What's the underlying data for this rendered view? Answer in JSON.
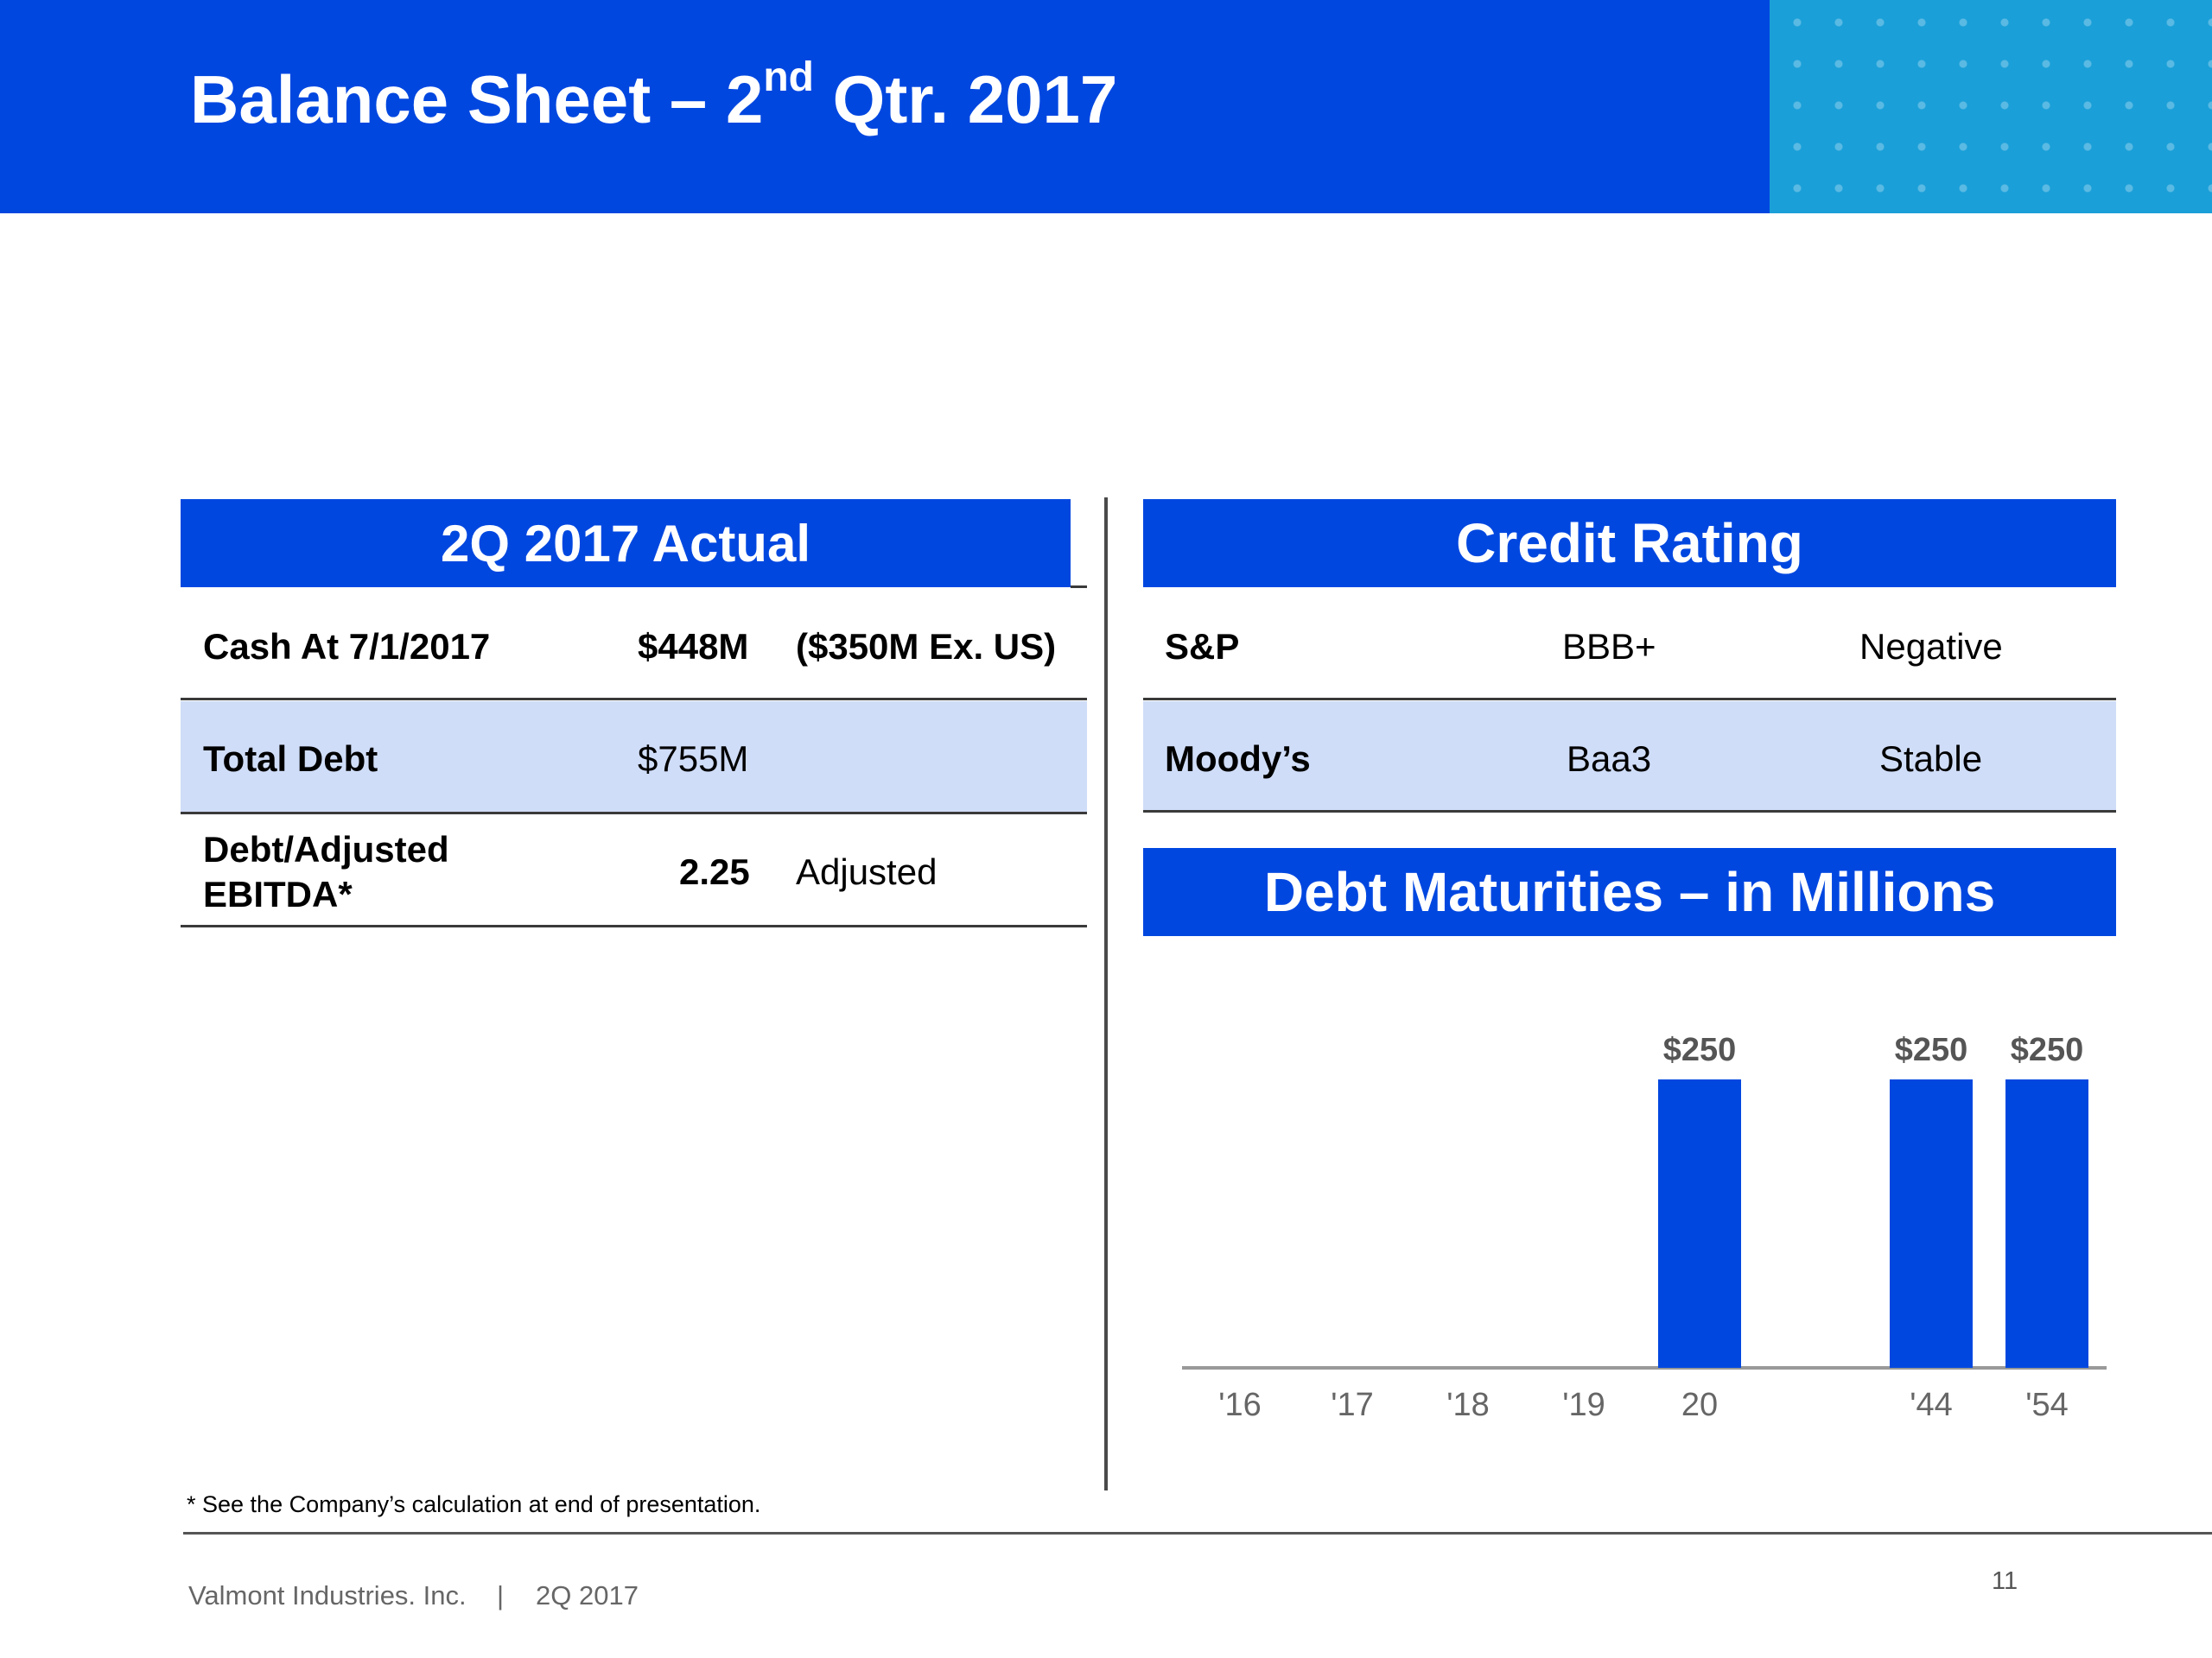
{
  "header": {
    "title_main": "Balance Sheet – 2",
    "title_sup": "nd",
    "title_end": " Qtr. 2017"
  },
  "left_panel": {
    "title": "2Q 2017 Actual",
    "rows": [
      {
        "label": "Cash At 7/1/2017",
        "value": "$448M",
        "note": "($350M Ex. US)"
      },
      {
        "label": "Total Debt",
        "value": "$755M",
        "note": ""
      },
      {
        "label_line1": "Debt/Adjusted",
        "label_line2": "EBITDA*",
        "value": "2.25",
        "note": "Adjusted"
      }
    ]
  },
  "credit_rating": {
    "title": "Credit Rating",
    "rows": [
      {
        "agency": "S&P",
        "rating": "BBB+",
        "outlook": "Negative"
      },
      {
        "agency": "Moody’s",
        "rating": "Baa3",
        "outlook": "Stable"
      }
    ]
  },
  "debt_maturities": {
    "title": "Debt Maturities – in Millions"
  },
  "chart_data": {
    "type": "bar",
    "title": "Debt Maturities – in Millions",
    "categories": [
      "'16",
      "'17",
      "'18",
      "'19",
      "20",
      "'44",
      "'54"
    ],
    "values": [
      0,
      0,
      0,
      0,
      250,
      250,
      250
    ],
    "data_labels": [
      "",
      "",
      "",
      "",
      "$250",
      "$250",
      "$250"
    ],
    "xlabel": "",
    "ylabel": "",
    "ylim": [
      0,
      250
    ],
    "bar_color": "#0047e0",
    "grid": false,
    "legend": "none"
  },
  "footnote": "* See the Company’s calculation at end of presentation.",
  "footer": {
    "company": "Valmont Industries. Inc.",
    "separator": "|",
    "quarter": "2Q 2017",
    "page": "11"
  },
  "colors": {
    "primary_blue": "#0047e0",
    "accent_cyan": "#1a9fd8",
    "row_shade": "#d0ddf8"
  }
}
